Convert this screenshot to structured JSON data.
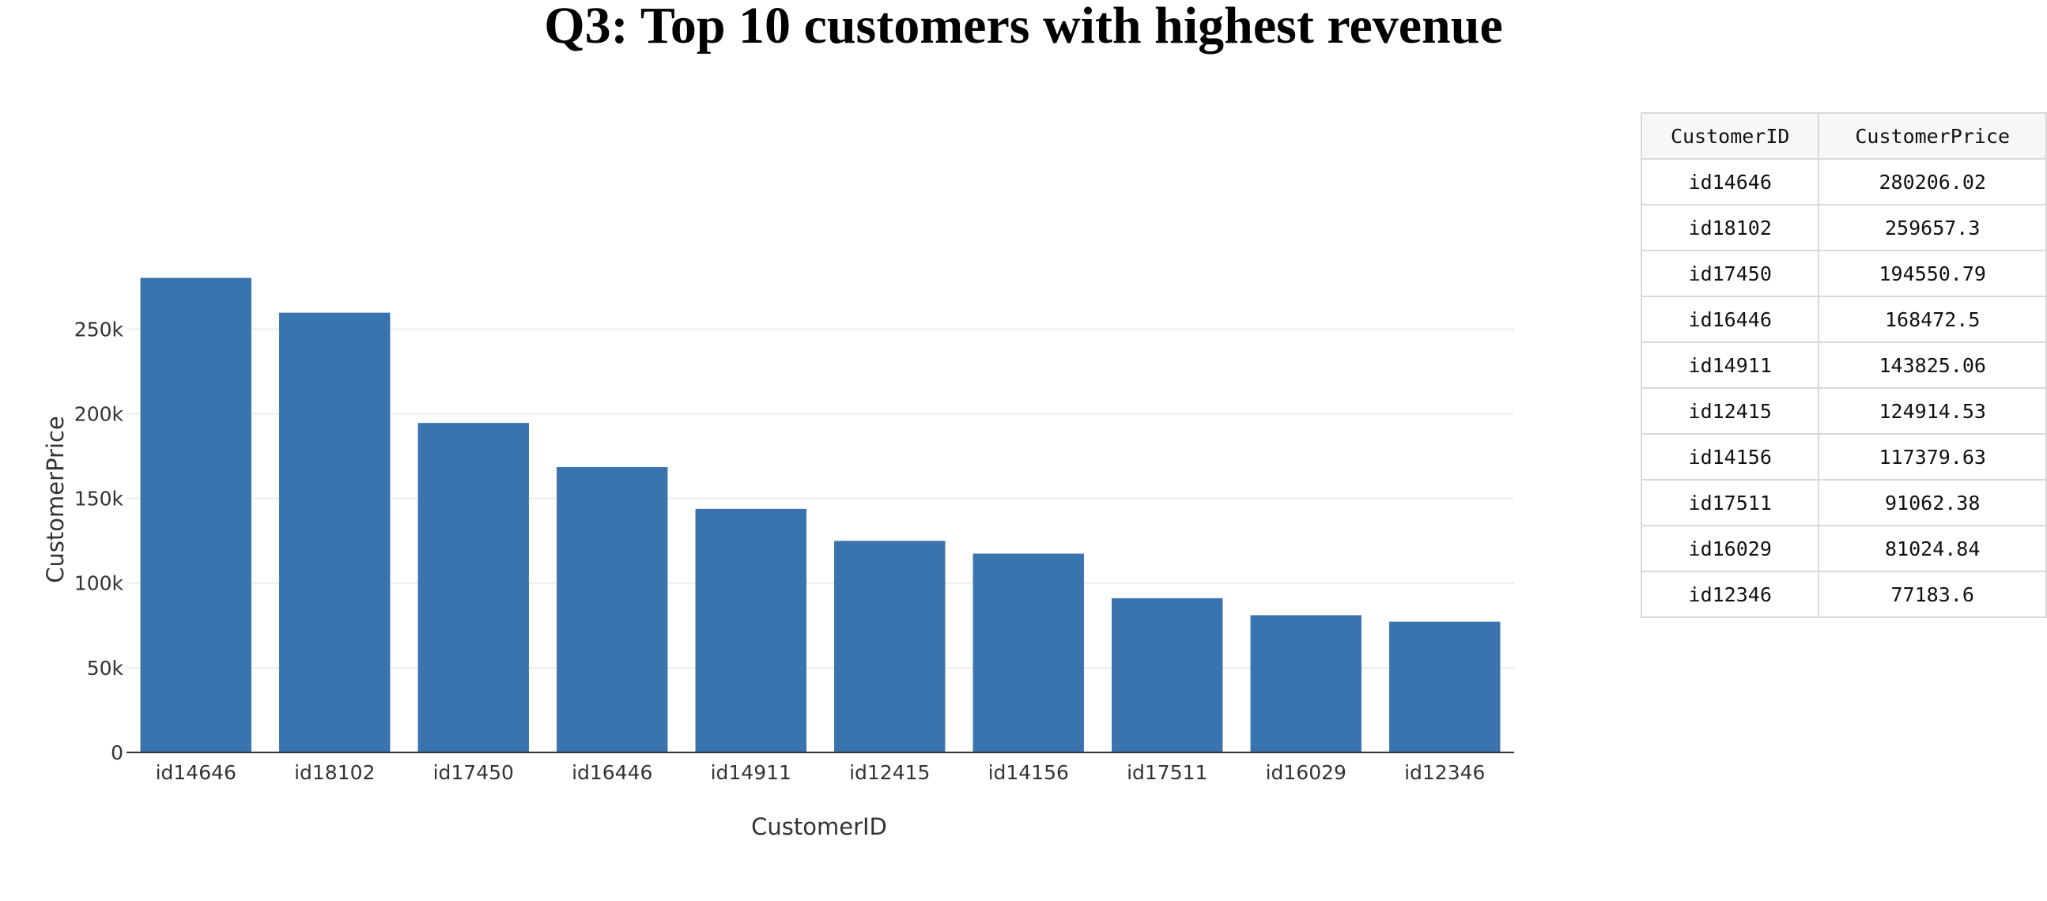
{
  "title": "Q3: Top 10 customers with highest revenue",
  "chart_data": {
    "type": "bar",
    "title": "Q3: Top 10 customers with highest revenue",
    "xlabel": "CustomerID",
    "ylabel": "CustomerPrice",
    "categories": [
      "id14646",
      "id18102",
      "id17450",
      "id16446",
      "id14911",
      "id12415",
      "id14156",
      "id17511",
      "id16029",
      "id12346"
    ],
    "values": [
      280206.02,
      259657.3,
      194550.79,
      168472.5,
      143825.06,
      124914.53,
      117379.63,
      91062.38,
      81024.84,
      77183.6
    ],
    "ylim": [
      0,
      294954
    ],
    "yticks": [
      0,
      50000,
      100000,
      150000,
      200000,
      250000
    ],
    "ytick_labels": [
      "0",
      "50k",
      "100k",
      "150k",
      "200k",
      "250k"
    ],
    "grid": true,
    "bar_color": "#3a74ae"
  },
  "table": {
    "headers": [
      "CustomerID",
      "CustomerPrice"
    ],
    "rows": [
      [
        "id14646",
        "280206.02"
      ],
      [
        "id18102",
        "259657.3"
      ],
      [
        "id17450",
        "194550.79"
      ],
      [
        "id16446",
        "168472.5"
      ],
      [
        "id14911",
        "143825.06"
      ],
      [
        "id12415",
        "124914.53"
      ],
      [
        "id14156",
        "117379.63"
      ],
      [
        "id17511",
        "91062.38"
      ],
      [
        "id16029",
        "81024.84"
      ],
      [
        "id12346",
        "77183.6"
      ]
    ]
  }
}
